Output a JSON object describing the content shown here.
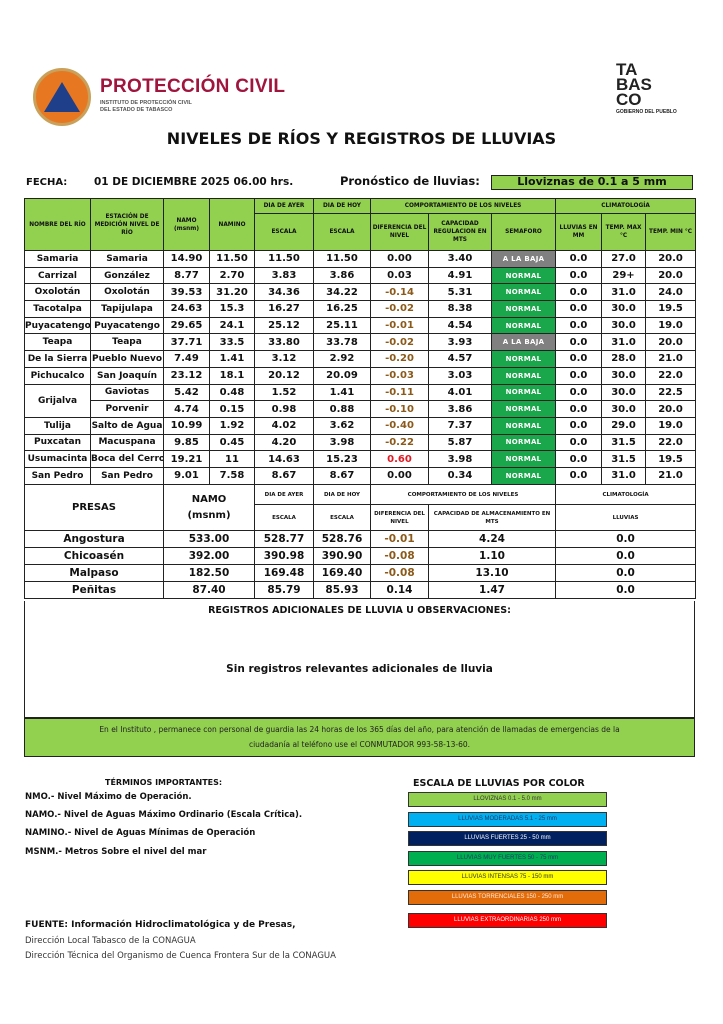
{
  "header": {
    "org_title": "PROTECCIÓN CIVIL",
    "org_sub1": "INSTITUTO DE PROTECCIÓN CIVIL",
    "org_sub2": "DEL ESTADO DE TABASCO",
    "gov_logo_lines": [
      "TA",
      "BAS",
      "CO"
    ],
    "gov_logo_sub": "GOBIERNO DEL PUEBLO",
    "title": "NIVELES DE RÍOS Y REGISTROS DE LLUVIAS"
  },
  "fecha": {
    "label": "FECHA:",
    "value": "01 DE DICIEMBRE 2025   06.00  hrs."
  },
  "pronostico": {
    "label": "Pronóstico de lluvias:",
    "value": "Lloviznas de 0.1 a 5 mm"
  },
  "colors": {
    "header_green": "#92d050",
    "normal": "#1aa64a",
    "a_la_baja": "#808080",
    "negative_diff": "#8b5a1a",
    "positive_diff": "#e01b24"
  },
  "rivers_header": {
    "river": "NOMBRE DEL RÍO",
    "station": "ESTACIÓN DE MEDICIÓN NIVEL DE RÍO",
    "namo": "NAMO (msnm)",
    "namino": "NAMINO",
    "ayer": "DIA DE AYER",
    "hoy": "DIA DE HOY",
    "escala": "ESCALA",
    "comportamiento": "COMPORTAMIENTO DE LOS NIVELES",
    "diferencia": "DIFERENCIA DEL NIVEL",
    "capacidad": "CAPACIDAD REGULACION EN MTS",
    "semaforo": "SEMAFORO",
    "climatologia": "CLIMATOLOGÍA",
    "lluvias": "LLUVIAS EN MM",
    "tmax": "TEMP. MAX °C",
    "tmin": "TEMP.  MIN °C"
  },
  "rivers": [
    {
      "river": "Samaria",
      "station": "Samaria",
      "namo": "14.90",
      "namino": "11.50",
      "ayer": "11.50",
      "hoy": "11.50",
      "diff": "0.00",
      "cap": "3.40",
      "sem": "A LA BAJA",
      "rain": "0.0",
      "tmax": "27.0",
      "tmin": "20.0"
    },
    {
      "river": "Carrizal",
      "station": "González",
      "namo": "8.77",
      "namino": "2.70",
      "ayer": "3.83",
      "hoy": "3.86",
      "diff": "0.03",
      "cap": "4.91",
      "sem": "NORMAL",
      "rain": "0.0",
      "tmax": "29+",
      "tmin": "20.0"
    },
    {
      "river": "Oxolotán",
      "station": "Oxolotán",
      "namo": "39.53",
      "namino": "31.20",
      "ayer": "34.36",
      "hoy": "34.22",
      "diff": "-0.14",
      "cap": "5.31",
      "sem": "NORMAL",
      "rain": "0.0",
      "tmax": "31.0",
      "tmin": "24.0"
    },
    {
      "river": "Tacotalpa",
      "station": "Tapijulapa",
      "namo": "24.63",
      "namino": "15.3",
      "ayer": "16.27",
      "hoy": "16.25",
      "diff": "-0.02",
      "cap": "8.38",
      "sem": "NORMAL",
      "rain": "0.0",
      "tmax": "30.0",
      "tmin": "19.5"
    },
    {
      "river": "Puyacatengo",
      "station": "Puyacatengo",
      "namo": "29.65",
      "namino": "24.1",
      "ayer": "25.12",
      "hoy": "25.11",
      "diff": "-0.01",
      "cap": "4.54",
      "sem": "NORMAL",
      "rain": "0.0",
      "tmax": "30.0",
      "tmin": "19.0"
    },
    {
      "river": "Teapa",
      "station": "Teapa",
      "namo": "37.71",
      "namino": "33.5",
      "ayer": "33.80",
      "hoy": "33.78",
      "diff": "-0.02",
      "cap": "3.93",
      "sem": "A LA BAJA",
      "rain": "0.0",
      "tmax": "31.0",
      "tmin": "20.0"
    },
    {
      "river": "De la Sierra",
      "station": "Pueblo Nuevo",
      "namo": "7.49",
      "namino": "1.41",
      "ayer": "3.12",
      "hoy": "2.92",
      "diff": "-0.20",
      "cap": "4.57",
      "sem": "NORMAL",
      "rain": "0.0",
      "tmax": "28.0",
      "tmin": "21.0"
    },
    {
      "river": "Pichucalco",
      "station": "San Joaquín",
      "namo": "23.12",
      "namino": "18.1",
      "ayer": "20.12",
      "hoy": "20.09",
      "diff": "-0.03",
      "cap": "3.03",
      "sem": "NORMAL",
      "rain": "0.0",
      "tmax": "30.0",
      "tmin": "22.0"
    },
    {
      "river": "Grijalva",
      "river_rowspan": 2,
      "station": "Gaviotas",
      "namo": "5.42",
      "namino": "0.48",
      "ayer": "1.52",
      "hoy": "1.41",
      "diff": "-0.11",
      "cap": "4.01",
      "sem": "NORMAL",
      "rain": "0.0",
      "tmax": "30.0",
      "tmin": "22.5"
    },
    {
      "station": "Porvenir",
      "namo": "4.74",
      "namino": "0.15",
      "ayer": "0.98",
      "hoy": "0.88",
      "diff": "-0.10",
      "cap": "3.86",
      "sem": "NORMAL",
      "rain": "0.0",
      "tmax": "30.0",
      "tmin": "20.0"
    },
    {
      "river": "Tulija",
      "station": "Salto de Agua",
      "namo": "10.99",
      "namino": "1.92",
      "ayer": "4.02",
      "hoy": "3.62",
      "diff": "-0.40",
      "cap": "7.37",
      "sem": "NORMAL",
      "rain": "0.0",
      "tmax": "29.0",
      "tmin": "19.0"
    },
    {
      "river": "Puxcatan",
      "station": "Macuspana",
      "namo": "9.85",
      "namino": "0.45",
      "ayer": "4.20",
      "hoy": "3.98",
      "diff": "-0.22",
      "cap": "5.87",
      "sem": "NORMAL",
      "rain": "0.0",
      "tmax": "31.5",
      "tmin": "22.0"
    },
    {
      "river": "Usumacinta",
      "station": "Boca del Cerro",
      "namo": "19.21",
      "namino": "11",
      "ayer": "14.63",
      "hoy": "15.23",
      "diff": "0.60",
      "cap": "3.98",
      "sem": "NORMAL",
      "rain": "0.0",
      "tmax": "31.5",
      "tmin": "19.5"
    },
    {
      "river": "San Pedro",
      "station": "San Pedro",
      "namo": "9.01",
      "namino": "7.58",
      "ayer": "8.67",
      "hoy": "8.67",
      "diff": "0.00",
      "cap": "0.34",
      "sem": "NORMAL",
      "rain": "0.0",
      "tmax": "31.0",
      "tmin": "21.0"
    }
  ],
  "presas_header": {
    "presas": "PRESAS",
    "namo": "NAMO",
    "msnm": "(msnm)",
    "ayer": "DIA DE AYER",
    "hoy": "DIA DE HOY",
    "escala": "ESCALA",
    "comportamiento": "COMPORTAMIENTO DE LOS NIVELES",
    "diferencia": "DIFERENCIA DEL NIVEL",
    "capacidad": "CAPACIDAD DE ALMACENAMIENTO EN MTS",
    "climatologia": "CLIMATOLOGÍA",
    "lluvias": "LLUVIAS"
  },
  "presas": [
    {
      "name": "Angostura",
      "namo": "533.00",
      "ayer": "528.77",
      "hoy": "528.76",
      "diff": "-0.01",
      "cap": "4.24",
      "rain": "0.0"
    },
    {
      "name": "Chicoasén",
      "namo": "392.00",
      "ayer": "390.98",
      "hoy": "390.90",
      "diff": "-0.08",
      "cap": "1.10",
      "rain": "0.0"
    },
    {
      "name": "Malpaso",
      "namo": "182.50",
      "ayer": "169.48",
      "hoy": "169.40",
      "diff": "-0.08",
      "cap": "13.10",
      "rain": "0.0"
    },
    {
      "name": "Peñitas",
      "namo": "87.40",
      "ayer": "85.79",
      "hoy": "85.93",
      "diff": "0.14",
      "cap": "1.47",
      "rain": "0.0"
    }
  ],
  "observaciones": {
    "title": "REGISTROS ADICIONALES DE LLUVIA U OBSERVACIONES:",
    "text": "Sin registros relevantes adicionales de lluvia"
  },
  "footer": {
    "line1": "En el Instituto , permanece con personal de guardia las 24 horas de los 365 días del año, para atención de llamadas de emergencias de la",
    "line2": "ciudadanía al teléfono use el CONMUTADOR  993-58-13-60."
  },
  "terms": {
    "title": "TÉRMINOS IMPORTANTES:",
    "items": [
      "NMO.- Nivel Máximo de Operación.",
      "NAMO.- Nivel de Aguas Máximo Ordinario (Escala Crítica).",
      "NAMINO.- Nivel de Aguas Mínimas de Operación",
      "MSNM.- Metros Sobre el nivel del mar"
    ]
  },
  "scale": {
    "title": "ESCALA DE LLUVIAS POR COLOR",
    "items": [
      {
        "label": "LLOVIZNAS  0.1 - 5.0 mm",
        "color": "#92d050",
        "text": "#333"
      },
      {
        "label": "LLUVIAS MODERADAS 5.1 - 25 mm",
        "color": "#00b0f0",
        "text": "#1f3864"
      },
      {
        "label": "LLUVIAS FUERTES       25 - 50 mm",
        "color": "#002060",
        "text": "#fff"
      },
      {
        "label": "LLUVIAS MUY FUERTES   50 - 75 mm",
        "color": "#00b050",
        "text": "#1f3864"
      },
      {
        "label": "LLUVIAS INTENSAS    75 - 150 mm",
        "color": "#ffff00",
        "text": "#333"
      },
      {
        "label": "LLUVIAS TORRENCIALES  150 - 250  mm",
        "color": "#e36c0a",
        "text": "#fde9d9"
      },
      {
        "label": "LLUVIAS EXTRAORDINARIAS 250  mm",
        "color": "#ff0000",
        "text": "#fff"
      }
    ]
  },
  "fuente": {
    "title": "FUENTE: Información Hidroclimatológica y de Presas,",
    "lines": [
      "Dirección Local Tabasco de la CONAGUA",
      "Dirección Técnica del Organismo de Cuenca Frontera Sur de la CONAGUA"
    ]
  }
}
